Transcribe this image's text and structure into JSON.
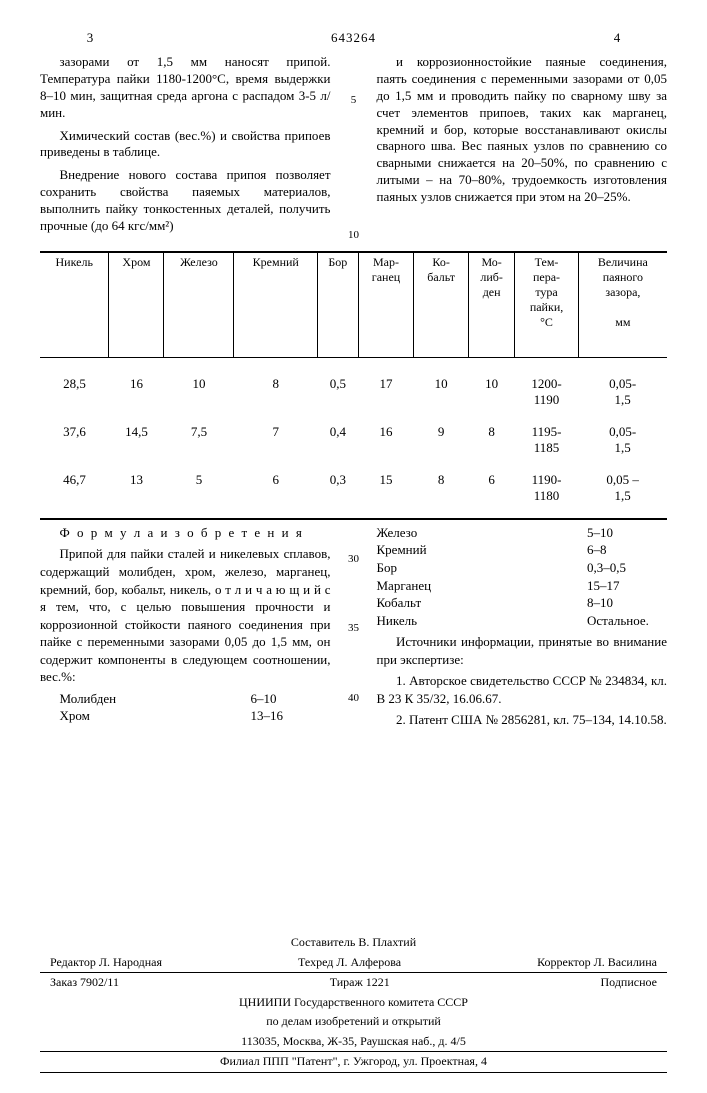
{
  "doc_number": "643264",
  "page_left": "3",
  "page_right": "4",
  "col1_paras": [
    "зазорами от 1,5 мм наносят припой. Температура пайки 1180-1200°C, время выдержки 8–10 мин, защитная среда аргона с распадом 3-5 л/мин.",
    "Химический состав (вес.%) и свойства припоев приведены в таблице.",
    "Внедрение нового состава припоя позволяет сохранить свойства паяемых материалов, выполнить пайку тонкостенных деталей, получить прочные (до 64 кгс/мм²)"
  ],
  "col2_paras": [
    "и коррозионностойкие паяные соединения, паять соединения с переменными зазорами от 0,05 до 1,5 мм и проводить пайку по сварному шву за счет элементов припоев, таких как марганец, кремний и бор, которые восстанавливают окислы сварного шва. Вес паяных узлов по сравнению со сварными снижается на 20–50%, по сравнению с литыми – на 70–80%, трудоемкость изготовления паяных узлов снижается при этом на 20–25%."
  ],
  "line_marks_top": [
    "5",
    "10"
  ],
  "table": {
    "headers": [
      "Никель",
      "Хром",
      "Железо",
      "Кремний",
      "Бор",
      "Мар-\nганец",
      "Ко-\nбальт",
      "Мо-\nлиб-\nден",
      "Тем-\nпера-\nтура\nпайки,\n°C",
      "Величина\nпаяного\nзазора,\n\nмм"
    ],
    "rows": [
      [
        "28,5",
        "16",
        "10",
        "8",
        "0,5",
        "17",
        "10",
        "10",
        "1200-\n1190",
        "0,05-\n1,5"
      ],
      [
        "37,6",
        "14,5",
        "7,5",
        "7",
        "0,4",
        "16",
        "9",
        "8",
        "1195-\n1185",
        "0,05-\n1,5"
      ],
      [
        "46,7",
        "13",
        "5",
        "6",
        "0,3",
        "15",
        "8",
        "6",
        "1190-\n1180",
        "0,05 –\n1,5"
      ]
    ]
  },
  "formula_title": "Ф о р м у л а   и з о б р е т е н и я",
  "formula_left_paras": [
    "Припой для пайки сталей и никелевых сплавов, содержащий молибден, хром, железо, марганец, кремний, бор, кобальт, никель, о т л и ч а ю щ и й с я  тем, что, с целью повышения прочности и коррозионной стойкости паяного соединения при пайке с переменными зазорами 0,05 до 1,5 мм, он содержит компоненты в следующем соотношении, вес.%:"
  ],
  "comp_left": [
    {
      "label": "Молибден",
      "value": "6–10"
    },
    {
      "label": "Хром",
      "value": "13–16"
    }
  ],
  "comp_right": [
    {
      "label": "Железо",
      "value": "5–10"
    },
    {
      "label": "Кремний",
      "value": "6–8"
    },
    {
      "label": "Бор",
      "value": "0,3–0,5"
    },
    {
      "label": "Марганец",
      "value": "15–17"
    },
    {
      "label": "Кобальт",
      "value": "8–10"
    },
    {
      "label": "Никель",
      "value": "Остальное."
    }
  ],
  "sources_title": "Источники информации, принятые во внимание при экспертизе:",
  "sources": [
    "1. Авторское свидетельство СССР № 234834, кл. В 23 К 35/32, 16.06.67.",
    "2. Патент США № 2856281, кл. 75–134, 14.10.58."
  ],
  "line_marks_formula": [
    "30",
    "35",
    "40"
  ],
  "colophon": {
    "compiler": "Составитель В. Плахтий",
    "row1": [
      "Редактор Л. Народная",
      "Техред Л. Алферова",
      "Корректор Л. Василина"
    ],
    "row2": [
      "Заказ 7902/11",
      "Тираж   1221",
      "Подписное"
    ],
    "org1": "ЦНИИПИ Государственного комитета СССР",
    "org2": "по делам изобретений и открытий",
    "addr": "113035, Москва, Ж-35, Раушская наб., д. 4/5",
    "printer": "Филиал ППП \"Патент\", г. Ужгород, ул. Проектная, 4"
  }
}
